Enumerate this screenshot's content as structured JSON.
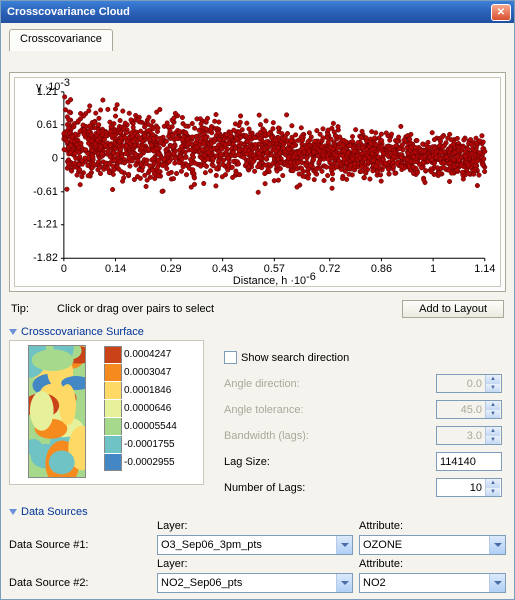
{
  "window": {
    "title": "Crosscovariance Cloud"
  },
  "tab": {
    "label": "Crosscovariance"
  },
  "chart": {
    "type": "scatter",
    "xlabel": "Distance, h ·10",
    "xlabel_exp": "-6",
    "ylabel": "γ ·10",
    "ylabel_exp": "-3",
    "xlim": [
      0,
      1.14
    ],
    "ylim": [
      -1.82,
      1.21
    ],
    "xticks": [
      0,
      0.14,
      0.29,
      0.43,
      0.57,
      0.72,
      0.86,
      1,
      1.14
    ],
    "yticks": [
      -1.82,
      -1.21,
      -0.61,
      0,
      0.61,
      1.21
    ],
    "point_color": "#b10606",
    "point_border": "#5a0303",
    "point_radius": 2.3,
    "background": "#ffffff",
    "axis_color": "#000000",
    "label_fontsize": 10,
    "n_points": 2200,
    "cloud_y_center_start": 0.25,
    "cloud_y_center_end": 0.0,
    "cloud_y_spread_start": 1.1,
    "cloud_y_spread_end": 0.55
  },
  "tip": {
    "label": "Tip:",
    "text": "Click or drag over pairs to select",
    "button": "Add to Layout"
  },
  "surface": {
    "heading": "Crosscovariance Surface",
    "legend": [
      {
        "color": "#c94218",
        "value": "0.0004247"
      },
      {
        "color": "#f58b1f",
        "value": "0.0003047"
      },
      {
        "color": "#ffd966",
        "value": "0.0001846"
      },
      {
        "color": "#e7f09a",
        "value": "0.0000646"
      },
      {
        "color": "#a6d98c",
        "value": "0.00005544"
      },
      {
        "color": "#6fc3c4",
        "value": "-0.0001755"
      },
      {
        "color": "#4487c5",
        "value": "-0.0002955"
      }
    ]
  },
  "search": {
    "checkbox_label": "Show search direction",
    "angle_direction": {
      "label": "Angle direction:",
      "value": "0.0",
      "enabled": false
    },
    "angle_tolerance": {
      "label": "Angle tolerance:",
      "value": "45.0",
      "enabled": false
    },
    "bandwidth": {
      "label": "Bandwidth (lags):",
      "value": "3.0",
      "enabled": false
    },
    "lag_size": {
      "label": "Lag Size:",
      "value": "114140"
    },
    "num_lags": {
      "label": "Number of Lags:",
      "value": "10"
    }
  },
  "data_sources": {
    "heading": "Data Sources",
    "layer_label": "Layer:",
    "attr_label": "Attribute:",
    "rows": [
      {
        "label": "Data Source #1:",
        "layer": "O3_Sep06_3pm_pts",
        "attr": "OZONE"
      },
      {
        "label": "Data Source #2:",
        "layer": "NO2_Sep06_pts",
        "attr": "NO2"
      }
    ]
  }
}
